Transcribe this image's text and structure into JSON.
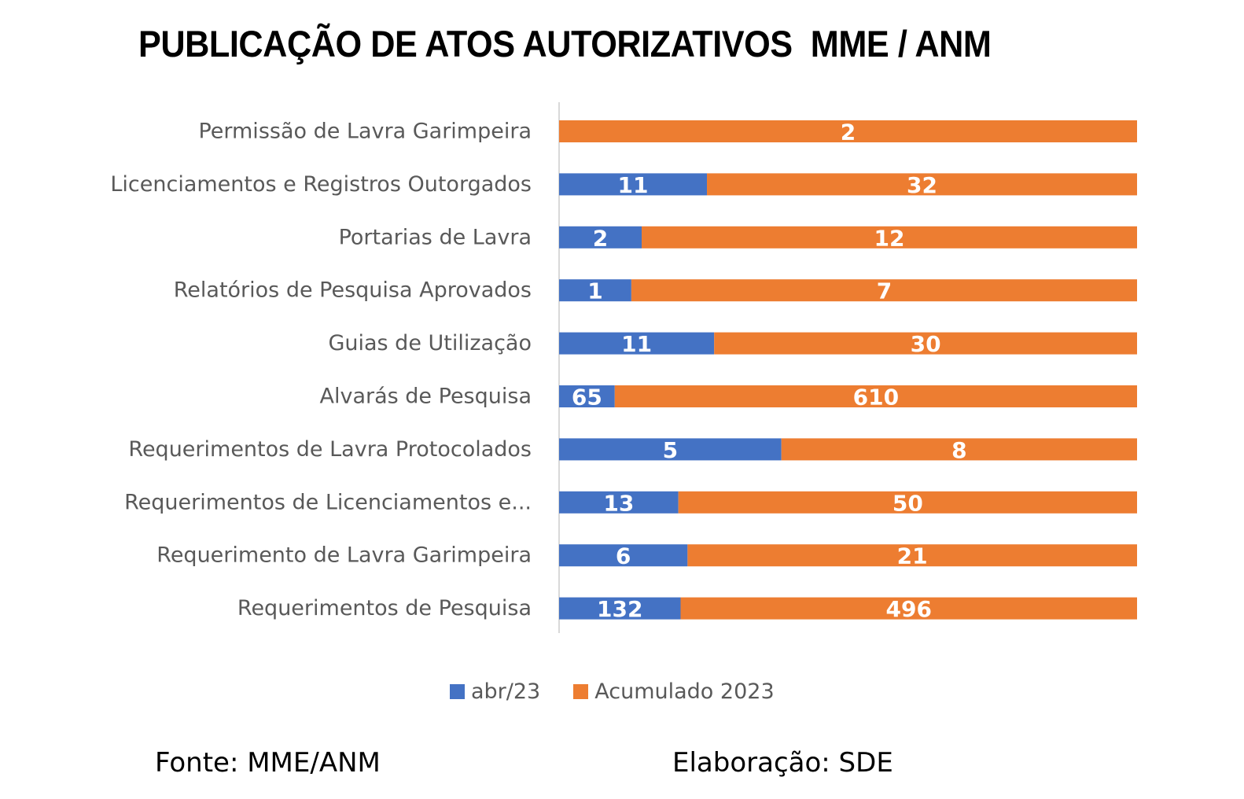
{
  "chart_data": {
    "type": "bar",
    "orientation": "horizontal",
    "stacked": true,
    "percent_stacked": true,
    "title": "PUBLICAÇÃO DE ATOS AUTORIZATIVOS  MME / ANM",
    "categories": [
      "Permissão de Lavra Garimpeira",
      "Licenciamentos e Registros Outorgados",
      "Portarias de Lavra",
      "Relatórios de Pesquisa Aprovados",
      "Guias de Utilização",
      "Alvarás de Pesquisa",
      "Requerimentos de Lavra Protocolados",
      "Requerimentos de Licenciamentos e...",
      "Requerimento de Lavra Garimpeira",
      "Requerimentos de Pesquisa"
    ],
    "series": [
      {
        "name": "abr/23",
        "color": "#4472C4",
        "values": [
          null,
          11,
          2,
          1,
          11,
          65,
          5,
          13,
          6,
          132
        ],
        "labels": [
          "-",
          "11",
          "2",
          "1",
          "11",
          "65",
          "5",
          "13",
          "6",
          "132"
        ]
      },
      {
        "name": "Acumulado 2023",
        "color": "#ED7D31",
        "values": [
          2,
          32,
          12,
          7,
          30,
          610,
          8,
          50,
          21,
          496
        ],
        "labels": [
          "2",
          "32",
          "12",
          "7",
          "30",
          "610",
          "8",
          "50",
          "21",
          "496"
        ]
      }
    ],
    "legend_position": "bottom",
    "grid": false
  },
  "footer": {
    "source": "Fonte: MME/ANM",
    "author": "Elaboração: SDE"
  }
}
